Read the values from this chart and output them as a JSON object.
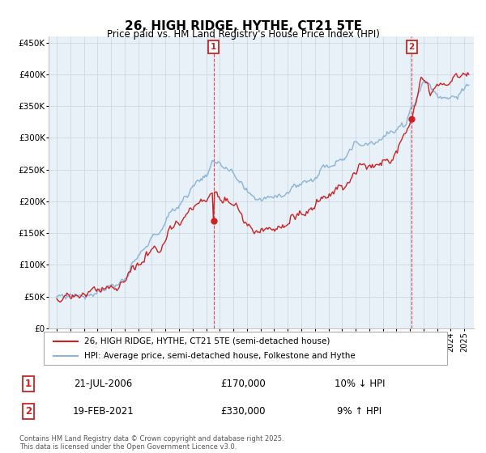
{
  "title": "26, HIGH RIDGE, HYTHE, CT21 5TE",
  "subtitle": "Price paid vs. HM Land Registry's House Price Index (HPI)",
  "hpi_color": "#8ab4d8",
  "price_color": "#cc2222",
  "dashed_color": "#cc3333",
  "chart_bg": "#e8f0f8",
  "marker1_x_year": 2006.54,
  "marker1_price": 170000,
  "marker2_x_year": 2021.12,
  "marker2_price": 330000,
  "legend_price_label": "26, HIGH RIDGE, HYTHE, CT21 5TE (semi-detached house)",
  "legend_hpi_label": "HPI: Average price, semi-detached house, Folkestone and Hythe",
  "table_row1_num": "1",
  "table_row1_date": "21-JUL-2006",
  "table_row1_price": "£170,000",
  "table_row1_hpi": "10% ↓ HPI",
  "table_row2_num": "2",
  "table_row2_date": "19-FEB-2021",
  "table_row2_price": "£330,000",
  "table_row2_hpi": "9% ↑ HPI",
  "footnote_line1": "Contains HM Land Registry data © Crown copyright and database right 2025.",
  "footnote_line2": "This data is licensed under the Open Government Licence v3.0.",
  "yticks": [
    0,
    50000,
    100000,
    150000,
    200000,
    250000,
    300000,
    350000,
    400000,
    450000
  ],
  "ylabel_labels": [
    "£0",
    "£50K",
    "£100K",
    "£150K",
    "£200K",
    "£250K",
    "£300K",
    "£350K",
    "£400K",
    "£450K"
  ],
  "xlim_start": 1994.4,
  "xlim_end": 2025.7,
  "ylim_top": 460000,
  "x_start_year": 1995,
  "x_end_year": 2025
}
